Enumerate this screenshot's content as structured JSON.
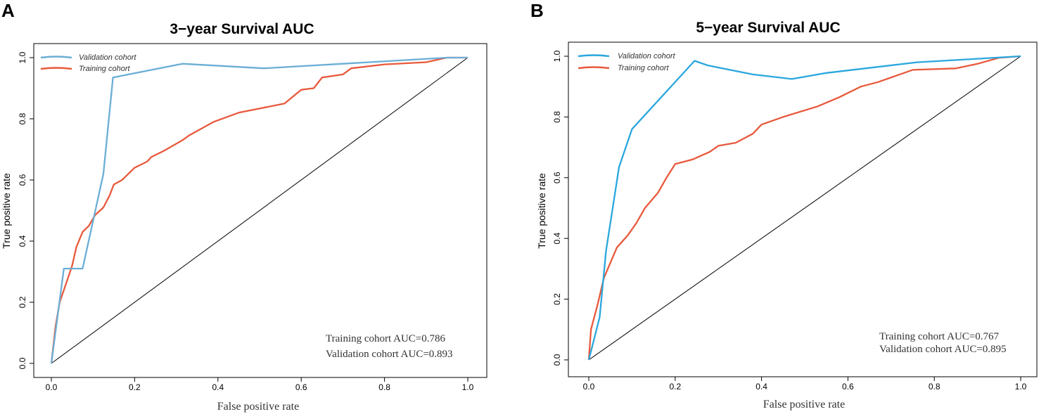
{
  "chart_data": [
    {
      "type": "line",
      "panel": "A",
      "title": "3−year Survival AUC",
      "xlabel": "False positive rate",
      "ylabel": "True positive rate",
      "xlim": [
        0,
        1
      ],
      "ylim": [
        0,
        1
      ],
      "xticks": [
        "0.0",
        "0.2",
        "0.4",
        "0.6",
        "0.8",
        "1.0"
      ],
      "yticks": [
        "0.0",
        "0.2",
        "0.4",
        "0.6",
        "0.8",
        "1.0"
      ],
      "legend_position": "top-left",
      "series": [
        {
          "name": "Validation cohort",
          "color": "#6baed6",
          "points": [
            [
              0,
              0
            ],
            [
              0.03,
              0.31
            ],
            [
              0.075,
              0.31
            ],
            [
              0.125,
              0.62
            ],
            [
              0.148,
              0.935
            ],
            [
              0.315,
              0.98
            ],
            [
              0.51,
              0.965
            ],
            [
              0.7,
              0.98
            ],
            [
              0.95,
              1.0
            ],
            [
              1.0,
              1.0
            ]
          ]
        },
        {
          "name": "Training cohort",
          "color": "#e8593c",
          "points": [
            [
              0,
              0
            ],
            [
              0.01,
              0.12
            ],
            [
              0.02,
              0.2
            ],
            [
              0.03,
              0.24
            ],
            [
              0.04,
              0.28
            ],
            [
              0.05,
              0.32
            ],
            [
              0.06,
              0.38
            ],
            [
              0.075,
              0.43
            ],
            [
              0.09,
              0.45
            ],
            [
              0.105,
              0.485
            ],
            [
              0.125,
              0.51
            ],
            [
              0.14,
              0.55
            ],
            [
              0.15,
              0.585
            ],
            [
              0.17,
              0.6
            ],
            [
              0.2,
              0.64
            ],
            [
              0.23,
              0.66
            ],
            [
              0.24,
              0.675
            ],
            [
              0.27,
              0.695
            ],
            [
              0.315,
              0.73
            ],
            [
              0.33,
              0.745
            ],
            [
              0.39,
              0.79
            ],
            [
              0.45,
              0.82
            ],
            [
              0.56,
              0.85
            ],
            [
              0.6,
              0.895
            ],
            [
              0.63,
              0.9
            ],
            [
              0.65,
              0.935
            ],
            [
              0.7,
              0.945
            ],
            [
              0.72,
              0.965
            ],
            [
              0.8,
              0.978
            ],
            [
              0.9,
              0.985
            ],
            [
              0.95,
              1.0
            ],
            [
              1.0,
              1.0
            ]
          ]
        },
        {
          "name": "Reference",
          "color": "#000000",
          "points": [
            [
              0,
              0
            ],
            [
              1,
              1
            ]
          ]
        }
      ],
      "annotations": [
        "Training cohort  AUC=0.786",
        "Validation cohort AUC=0.893"
      ]
    },
    {
      "type": "line",
      "panel": "B",
      "title": "5−year Survival AUC",
      "xlabel": "False positive rate",
      "ylabel": "True positive rate",
      "xlim": [
        0,
        1
      ],
      "ylim": [
        0,
        1
      ],
      "xticks": [
        "0.0",
        "0.2",
        "0.4",
        "0.6",
        "0.8",
        "1.0"
      ],
      "yticks": [
        "0.0",
        "0.2",
        "0.4",
        "0.6",
        "0.8",
        "1.0"
      ],
      "legend_position": "top-left",
      "series": [
        {
          "name": "Validation cohort",
          "color": "#2aa7de",
          "points": [
            [
              0,
              0
            ],
            [
              0.025,
              0.14
            ],
            [
              0.04,
              0.36
            ],
            [
              0.07,
              0.635
            ],
            [
              0.1,
              0.76
            ],
            [
              0.245,
              0.985
            ],
            [
              0.275,
              0.97
            ],
            [
              0.38,
              0.94
            ],
            [
              0.47,
              0.925
            ],
            [
              0.55,
              0.945
            ],
            [
              0.76,
              0.98
            ],
            [
              1.0,
              1.0
            ]
          ]
        },
        {
          "name": "Training cohort",
          "color": "#e8593c",
          "points": [
            [
              0,
              0
            ],
            [
              0.005,
              0.1
            ],
            [
              0.02,
              0.18
            ],
            [
              0.035,
              0.27
            ],
            [
              0.05,
              0.32
            ],
            [
              0.065,
              0.37
            ],
            [
              0.09,
              0.41
            ],
            [
              0.11,
              0.45
            ],
            [
              0.13,
              0.5
            ],
            [
              0.16,
              0.55
            ],
            [
              0.18,
              0.6
            ],
            [
              0.2,
              0.645
            ],
            [
              0.24,
              0.66
            ],
            [
              0.28,
              0.685
            ],
            [
              0.3,
              0.705
            ],
            [
              0.34,
              0.715
            ],
            [
              0.38,
              0.745
            ],
            [
              0.4,
              0.775
            ],
            [
              0.45,
              0.8
            ],
            [
              0.53,
              0.835
            ],
            [
              0.58,
              0.865
            ],
            [
              0.63,
              0.9
            ],
            [
              0.67,
              0.915
            ],
            [
              0.75,
              0.955
            ],
            [
              0.85,
              0.96
            ],
            [
              0.9,
              0.975
            ],
            [
              0.95,
              0.995
            ],
            [
              1.0,
              1.0
            ]
          ]
        },
        {
          "name": "Reference",
          "color": "#000000",
          "points": [
            [
              0,
              0
            ],
            [
              1,
              1
            ]
          ]
        }
      ],
      "annotations": [
        "Training cohort  AUC=0.767",
        "Validation cohort AUC=0.895"
      ]
    }
  ]
}
